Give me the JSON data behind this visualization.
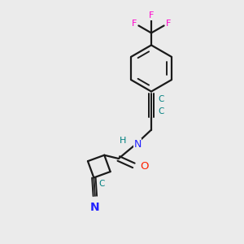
{
  "bg_color": "#ebebeb",
  "bond_color": "#1a1a1a",
  "F_color": "#ff00cc",
  "O_color": "#ff2200",
  "N_color": "#2222ff",
  "C_alkyne_color": "#008080",
  "H_color": "#008080",
  "lw": 1.6,
  "fig_w": 3.0,
  "fig_h": 3.0,
  "dpi": 100,
  "xlim": [
    0,
    10
  ],
  "ylim": [
    0,
    10
  ]
}
